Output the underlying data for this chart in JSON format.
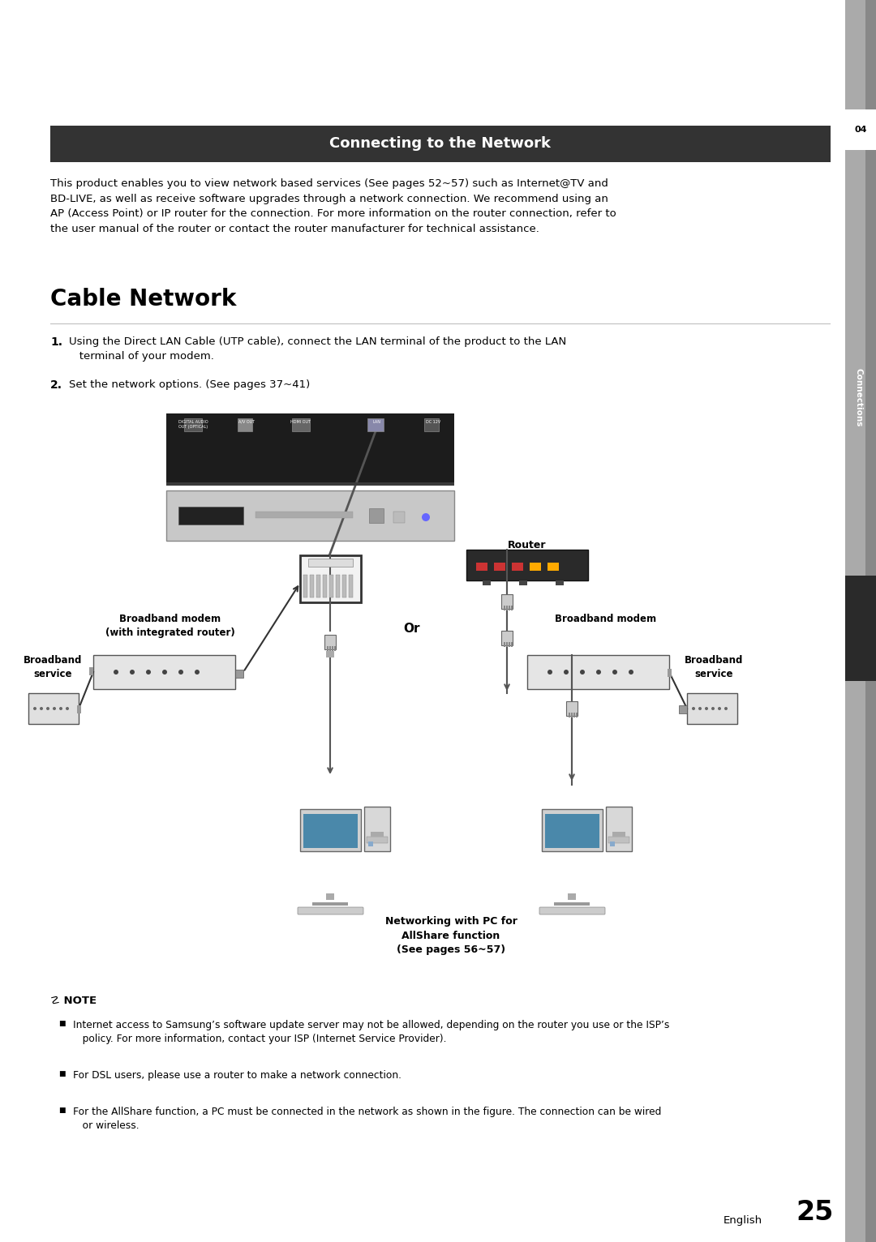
{
  "bg_color": "#ffffff",
  "header_bg": "#333333",
  "header_text": "Connecting to the Network",
  "header_text_color": "#ffffff",
  "header_fontsize": 13,
  "body_text_color": "#000000",
  "intro_paragraph": "This product enables you to view network based services (See pages 52~57) such as Internet@TV and\nBD-LIVE, as well as receive software upgrades through a network connection. We recommend using an\nAP (Access Point) or IP router for the connection. For more information on the router connection, refer to\nthe user manual of the router or contact the router manufacturer for technical assistance.",
  "section_title": "Cable Network",
  "note_title": "☡ NOTE",
  "note_bullets": [
    "Internet access to Samsung’s software update server may not be allowed, depending on the router you use or the ISP’s\n   policy. For more information, contact your ISP (Internet Service Provider).",
    "For DSL users, please use a router to make a network connection.",
    "For the AllShare function, a PC must be connected in the network as shown in the figure. The connection can be wired\n   or wireless."
  ],
  "page_num": "25",
  "lang_label": "English",
  "right_tab_04": "04",
  "right_tab_connections": "Connections",
  "diagram_labels": {
    "router": "Router",
    "broadband_modem_left": "Broadband modem\n(with integrated router)",
    "broadband_service_left": "Broadband\nservice",
    "or_label": "Or",
    "broadband_modem_right": "Broadband modem",
    "broadband_service_right": "Broadband\nservice",
    "pc_label": "Networking with PC for\nAllShare function\n(See pages 56~57)"
  }
}
